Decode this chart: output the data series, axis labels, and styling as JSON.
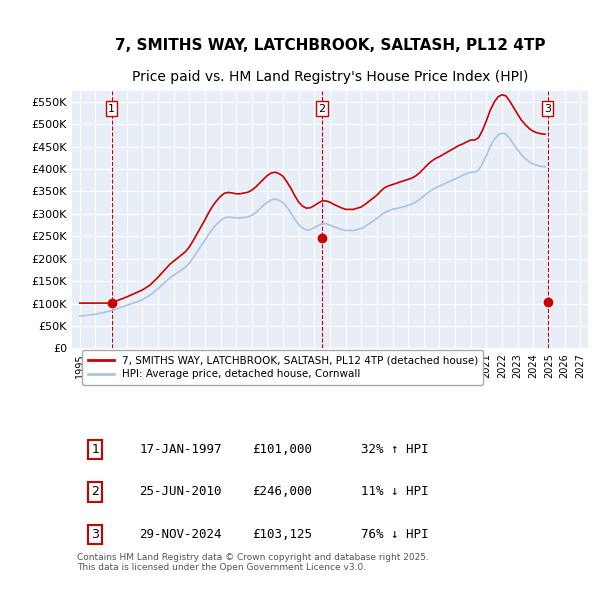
{
  "title": "7, SMITHS WAY, LATCHBROOK, SALTASH, PL12 4TP",
  "subtitle": "Price paid vs. HM Land Registry's House Price Index (HPI)",
  "xlabel": "",
  "ylabel": "",
  "ylim": [
    0,
    575000
  ],
  "yticks": [
    0,
    50000,
    100000,
    150000,
    200000,
    250000,
    300000,
    350000,
    400000,
    450000,
    500000,
    550000
  ],
  "ytick_labels": [
    "£0",
    "£50K",
    "£100K",
    "£150K",
    "£200K",
    "£250K",
    "£300K",
    "£350K",
    "£400K",
    "£450K",
    "£500K",
    "£550K"
  ],
  "background_color": "#ffffff",
  "plot_bg_color": "#e8eef8",
  "grid_color": "#ffffff",
  "sale_color": "#cc0000",
  "hpi_color": "#aac4e0",
  "vline_color": "#cc0000",
  "sale_dates": [
    1997.04,
    2010.48,
    2024.91
  ],
  "sale_prices": [
    101000,
    246000,
    103125
  ],
  "sale_labels": [
    "1",
    "2",
    "3"
  ],
  "legend_label_sale": "7, SMITHS WAY, LATCHBROOK, SALTASH, PL12 4TP (detached house)",
  "legend_label_hpi": "HPI: Average price, detached house, Cornwall",
  "table_rows": [
    [
      "1",
      "17-JAN-1997",
      "£101,000",
      "32% ↑ HPI"
    ],
    [
      "2",
      "25-JUN-2010",
      "£246,000",
      "11% ↓ HPI"
    ],
    [
      "3",
      "29-NOV-2024",
      "£103,125",
      "76% ↓ HPI"
    ]
  ],
  "footer": "Contains HM Land Registry data © Crown copyright and database right 2025.\nThis data is licensed under the Open Government Licence v3.0.",
  "title_fontsize": 11,
  "subtitle_fontsize": 10,
  "hpi_data_x": [
    1995.0,
    1995.25,
    1995.5,
    1995.75,
    1996.0,
    1996.25,
    1996.5,
    1996.75,
    1997.0,
    1997.25,
    1997.5,
    1997.75,
    1998.0,
    1998.25,
    1998.5,
    1998.75,
    1999.0,
    1999.25,
    1999.5,
    1999.75,
    2000.0,
    2000.25,
    2000.5,
    2000.75,
    2001.0,
    2001.25,
    2001.5,
    2001.75,
    2002.0,
    2002.25,
    2002.5,
    2002.75,
    2003.0,
    2003.25,
    2003.5,
    2003.75,
    2004.0,
    2004.25,
    2004.5,
    2004.75,
    2005.0,
    2005.25,
    2005.5,
    2005.75,
    2006.0,
    2006.25,
    2006.5,
    2006.75,
    2007.0,
    2007.25,
    2007.5,
    2007.75,
    2008.0,
    2008.25,
    2008.5,
    2008.75,
    2009.0,
    2009.25,
    2009.5,
    2009.75,
    2010.0,
    2010.25,
    2010.5,
    2010.75,
    2011.0,
    2011.25,
    2011.5,
    2011.75,
    2012.0,
    2012.25,
    2012.5,
    2012.75,
    2013.0,
    2013.25,
    2013.5,
    2013.75,
    2014.0,
    2014.25,
    2014.5,
    2014.75,
    2015.0,
    2015.25,
    2015.5,
    2015.75,
    2016.0,
    2016.25,
    2016.5,
    2016.75,
    2017.0,
    2017.25,
    2017.5,
    2017.75,
    2018.0,
    2018.25,
    2018.5,
    2018.75,
    2019.0,
    2019.25,
    2019.5,
    2019.75,
    2020.0,
    2020.25,
    2020.5,
    2020.75,
    2021.0,
    2021.25,
    2021.5,
    2021.75,
    2022.0,
    2022.25,
    2022.5,
    2022.75,
    2023.0,
    2023.25,
    2023.5,
    2023.75,
    2024.0,
    2024.25,
    2024.5,
    2024.75
  ],
  "hpi_data_y": [
    72000,
    73000,
    74000,
    75000,
    76000,
    78000,
    80000,
    82000,
    84000,
    87000,
    90000,
    93000,
    96000,
    99000,
    102000,
    105000,
    109000,
    114000,
    119000,
    126000,
    133000,
    141000,
    149000,
    157000,
    163000,
    169000,
    175000,
    181000,
    190000,
    202000,
    215000,
    228000,
    241000,
    255000,
    267000,
    277000,
    285000,
    291000,
    293000,
    292000,
    291000,
    291000,
    292000,
    293000,
    297000,
    303000,
    311000,
    319000,
    326000,
    331000,
    333000,
    330000,
    325000,
    315000,
    302000,
    288000,
    276000,
    268000,
    264000,
    265000,
    269000,
    274000,
    278000,
    278000,
    275000,
    271000,
    268000,
    265000,
    263000,
    263000,
    263000,
    265000,
    267000,
    272000,
    278000,
    284000,
    290000,
    297000,
    303000,
    307000,
    310000,
    312000,
    314000,
    316000,
    319000,
    322000,
    327000,
    333000,
    340000,
    347000,
    353000,
    358000,
    362000,
    366000,
    370000,
    374000,
    378000,
    382000,
    386000,
    390000,
    393000,
    393000,
    398000,
    412000,
    430000,
    450000,
    466000,
    476000,
    480000,
    478000,
    468000,
    455000,
    443000,
    432000,
    423000,
    416000,
    411000,
    408000,
    406000,
    405000
  ],
  "sale_hpi_x": [
    1995.0,
    1995.25,
    1995.5,
    1995.75,
    1996.0,
    1996.25,
    1996.5,
    1996.75,
    1997.0,
    1997.25,
    1997.5,
    1997.75,
    1998.0,
    1998.25,
    1998.5,
    1998.75,
    1999.0,
    1999.25,
    1999.5,
    1999.75,
    2000.0,
    2000.25,
    2000.5,
    2000.75,
    2001.0,
    2001.25,
    2001.5,
    2001.75,
    2002.0,
    2002.25,
    2002.5,
    2002.75,
    2003.0,
    2003.25,
    2003.5,
    2003.75,
    2004.0,
    2004.25,
    2004.5,
    2004.75,
    2005.0,
    2005.25,
    2005.5,
    2005.75,
    2006.0,
    2006.25,
    2006.5,
    2006.75,
    2007.0,
    2007.25,
    2007.5,
    2007.75,
    2008.0,
    2008.25,
    2008.5,
    2008.75,
    2009.0,
    2009.25,
    2009.5,
    2009.75,
    2010.0,
    2010.25,
    2010.5,
    2010.75,
    2011.0,
    2011.25,
    2011.5,
    2011.75,
    2012.0,
    2012.25,
    2012.5,
    2012.75,
    2013.0,
    2013.25,
    2013.5,
    2013.75,
    2014.0,
    2014.25,
    2014.5,
    2014.75,
    2015.0,
    2015.25,
    2015.5,
    2015.75,
    2016.0,
    2016.25,
    2016.5,
    2016.75,
    2017.0,
    2017.25,
    2017.5,
    2017.75,
    2018.0,
    2018.25,
    2018.5,
    2018.75,
    2019.0,
    2019.25,
    2019.5,
    2019.75,
    2020.0,
    2020.25,
    2020.5,
    2020.75,
    2021.0,
    2021.25,
    2021.5,
    2021.75,
    2022.0,
    2022.25,
    2022.5,
    2022.75,
    2023.0,
    2023.25,
    2023.5,
    2023.75,
    2024.0,
    2024.25,
    2024.5,
    2024.75
  ],
  "sale_hpi_y": [
    101000,
    101000,
    101000,
    101000,
    101000,
    101000,
    101000,
    101000,
    101000,
    104455,
    107910,
    111365,
    114820,
    118682,
    122544,
    126406,
    130268,
    135862,
    141456,
    150024,
    158592,
    168193,
    177794,
    187396,
    194556,
    201503,
    208450,
    215397,
    226095,
    240337,
    255773,
    271208,
    286644,
    303381,
    317683,
    329490,
    339013,
    345937,
    347919,
    346543,
    344803,
    344803,
    346543,
    348283,
    352933,
    359872,
    368628,
    377383,
    385774,
    391252,
    393002,
    389598,
    383636,
    370898,
    357110,
    340378,
    325916,
    317005,
    312643,
    313798,
    318448,
    324253,
    328903,
    328903,
    325963,
    321023,
    317083,
    313143,
    310028,
    310028,
    310028,
    312743,
    315458,
    321358,
    328183,
    335008,
    341833,
    350938,
    358543,
    362483,
    365423,
    368363,
    371303,
    374243,
    376883,
    380123,
    385173,
    392173,
    401173,
    410173,
    417673,
    423673,
    427673,
    432673,
    437673,
    442673,
    447673,
    452673,
    456173,
    460673,
    464673,
    464673,
    469673,
    486173,
    507673,
    531173,
    549173,
    561173,
    565673,
    563173,
    551173,
    536673,
    522173,
    508673,
    498673,
    490173,
    484173,
    480673,
    478673,
    477673
  ],
  "xlim": [
    1994.5,
    2027.5
  ],
  "xtick_years": [
    1995,
    1996,
    1997,
    1998,
    1999,
    2000,
    2001,
    2002,
    2003,
    2004,
    2005,
    2006,
    2007,
    2008,
    2009,
    2010,
    2011,
    2012,
    2013,
    2014,
    2015,
    2016,
    2017,
    2018,
    2019,
    2020,
    2021,
    2022,
    2023,
    2024,
    2025,
    2026,
    2027
  ]
}
